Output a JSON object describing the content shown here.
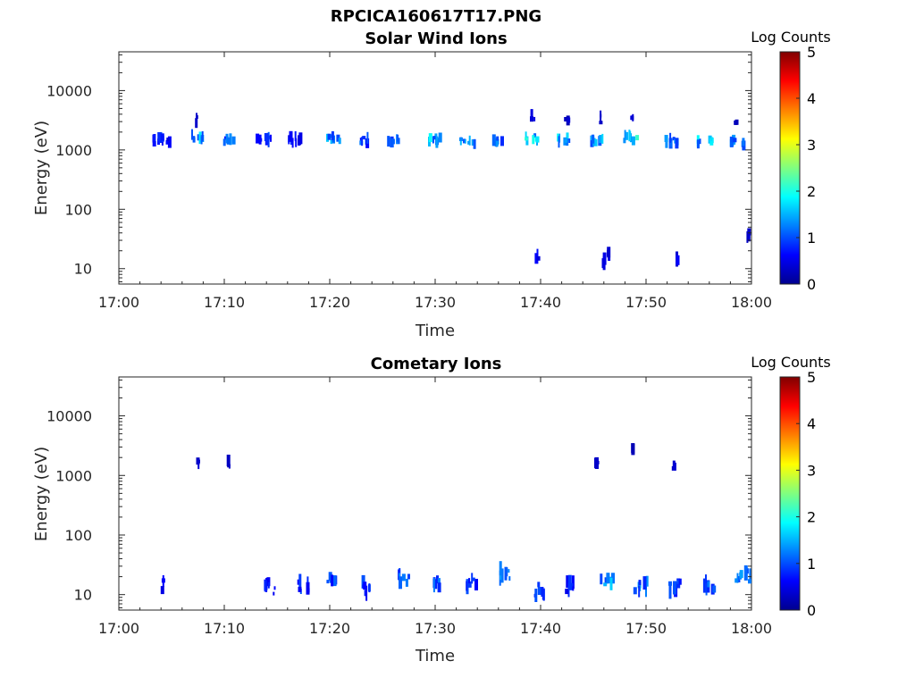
{
  "figure_title": "RPCICA160617T17.PNG",
  "chart_data": [
    {
      "type": "heatmap",
      "title": "Solar Wind Ions",
      "xlabel": "Time",
      "ylabel": "Energy (eV)",
      "x_ticks": [
        "17:00",
        "17:10",
        "17:20",
        "17:30",
        "17:40",
        "17:50",
        "18:00"
      ],
      "xlim": [
        "17:00",
        "18:00"
      ],
      "y_scale": "log",
      "y_ticks": [
        10,
        100,
        1000,
        10000
      ],
      "y_tick_labels": [
        "10",
        "100",
        "1000",
        "10000"
      ],
      "ylim": [
        5.5,
        45000
      ],
      "colorbar": {
        "label": "Log Counts",
        "range": [
          0,
          5
        ],
        "ticks": [
          "0",
          "1",
          "2",
          "3",
          "4",
          "5"
        ],
        "colormap": "jet"
      },
      "blobs": [
        {
          "t": "17:03.7",
          "e": 1450,
          "v": 0.8
        },
        {
          "t": "17:04.2",
          "e": 1550,
          "v": 1.0
        },
        {
          "t": "17:04.7",
          "e": 1450,
          "v": 0.6
        },
        {
          "t": "17:07.4",
          "e": 1600,
          "v": 1.7
        },
        {
          "t": "17:07.4",
          "e": 3200,
          "v": 0.3
        },
        {
          "t": "17:10.4",
          "e": 1500,
          "v": 1.2
        },
        {
          "t": "17:13.3",
          "e": 1500,
          "v": 0.7
        },
        {
          "t": "17:14.4",
          "e": 1500,
          "v": 1.0
        },
        {
          "t": "17:16.4",
          "e": 1500,
          "v": 0.8
        },
        {
          "t": "17:17.2",
          "e": 1500,
          "v": 0.6
        },
        {
          "t": "17:20.3",
          "e": 1550,
          "v": 1.6
        },
        {
          "t": "17:23.5",
          "e": 1450,
          "v": 1.1
        },
        {
          "t": "17:26.1",
          "e": 1400,
          "v": 1.3
        },
        {
          "t": "17:29.9",
          "e": 1500,
          "v": 1.8
        },
        {
          "t": "17:33.1",
          "e": 1400,
          "v": 1.5
        },
        {
          "t": "17:36.1",
          "e": 1450,
          "v": 1.4
        },
        {
          "t": "17:39.2",
          "e": 1600,
          "v": 1.9
        },
        {
          "t": "17:39.3",
          "e": 3600,
          "v": 0.4
        },
        {
          "t": "17:42.3",
          "e": 1500,
          "v": 1.8
        },
        {
          "t": "17:42.5",
          "e": 3300,
          "v": 0.3
        },
        {
          "t": "17:45.3",
          "e": 1500,
          "v": 1.7
        },
        {
          "t": "17:45.6",
          "e": 3300,
          "v": 0.4
        },
        {
          "t": "17:48.5",
          "e": 1600,
          "v": 2.0
        },
        {
          "t": "17:48.7",
          "e": 3500,
          "v": 0.5
        },
        {
          "t": "17:52.5",
          "e": 1400,
          "v": 1.3
        },
        {
          "t": "17:55.6",
          "e": 1400,
          "v": 1.8
        },
        {
          "t": "17:58.7",
          "e": 1350,
          "v": 1.6
        },
        {
          "t": "17:58.5",
          "e": 3200,
          "v": 0.2
        },
        {
          "t": "17:39.7",
          "e": 17,
          "v": 0.6
        },
        {
          "t": "17:46.1",
          "e": 15,
          "v": 0.6
        },
        {
          "t": "17:46.6",
          "e": 17,
          "v": 0.5
        },
        {
          "t": "17:53.0",
          "e": 12,
          "v": 0.5
        },
        {
          "t": "17:59.7",
          "e": 43,
          "v": 0.3
        }
      ]
    },
    {
      "type": "heatmap",
      "title": "Cometary Ions",
      "xlabel": "Time",
      "ylabel": "Energy (eV)",
      "x_ticks": [
        "17:00",
        "17:10",
        "17:20",
        "17:30",
        "17:40",
        "17:50",
        "18:00"
      ],
      "xlim": [
        "17:00",
        "18:00"
      ],
      "y_scale": "log",
      "y_ticks": [
        10,
        100,
        1000,
        10000
      ],
      "y_tick_labels": [
        "10",
        "100",
        "1000",
        "10000"
      ],
      "ylim": [
        5.5,
        45000
      ],
      "colorbar": {
        "label": "Log Counts",
        "range": [
          0,
          5
        ],
        "ticks": [
          "0",
          "1",
          "2",
          "3",
          "4",
          "5"
        ],
        "colormap": "jet"
      },
      "blobs": [
        {
          "t": "17:07.5",
          "e": 1550,
          "v": 0.4
        },
        {
          "t": "17:10.4",
          "e": 1600,
          "v": 0.3
        },
        {
          "t": "17:45.3",
          "e": 1600,
          "v": 0.3
        },
        {
          "t": "17:48.9",
          "e": 3000,
          "v": 0.3
        },
        {
          "t": "17:52.6",
          "e": 1500,
          "v": 0.3
        },
        {
          "t": "17:04.3",
          "e": 14,
          "v": 0.6
        },
        {
          "t": "17:14.3",
          "e": 13,
          "v": 0.8
        },
        {
          "t": "17:17.5",
          "e": 14,
          "v": 0.9
        },
        {
          "t": "17:20.3",
          "e": 16,
          "v": 1.0
        },
        {
          "t": "17:23.6",
          "e": 13,
          "v": 0.9
        },
        {
          "t": "17:27.0",
          "e": 20,
          "v": 1.2
        },
        {
          "t": "17:30.3",
          "e": 15,
          "v": 1.1
        },
        {
          "t": "17:33.4",
          "e": 15,
          "v": 1.0
        },
        {
          "t": "17:36.8",
          "e": 22,
          "v": 1.3
        },
        {
          "t": "17:39.9",
          "e": 12,
          "v": 0.9
        },
        {
          "t": "17:42.8",
          "e": 13,
          "v": 0.8
        },
        {
          "t": "17:46.3",
          "e": 15,
          "v": 1.6
        },
        {
          "t": "17:49.5",
          "e": 14,
          "v": 1.3
        },
        {
          "t": "17:52.8",
          "e": 14,
          "v": 1.1
        },
        {
          "t": "17:56.0",
          "e": 15,
          "v": 1.2
        },
        {
          "t": "17:59.2",
          "e": 20,
          "v": 1.4
        }
      ]
    }
  ]
}
